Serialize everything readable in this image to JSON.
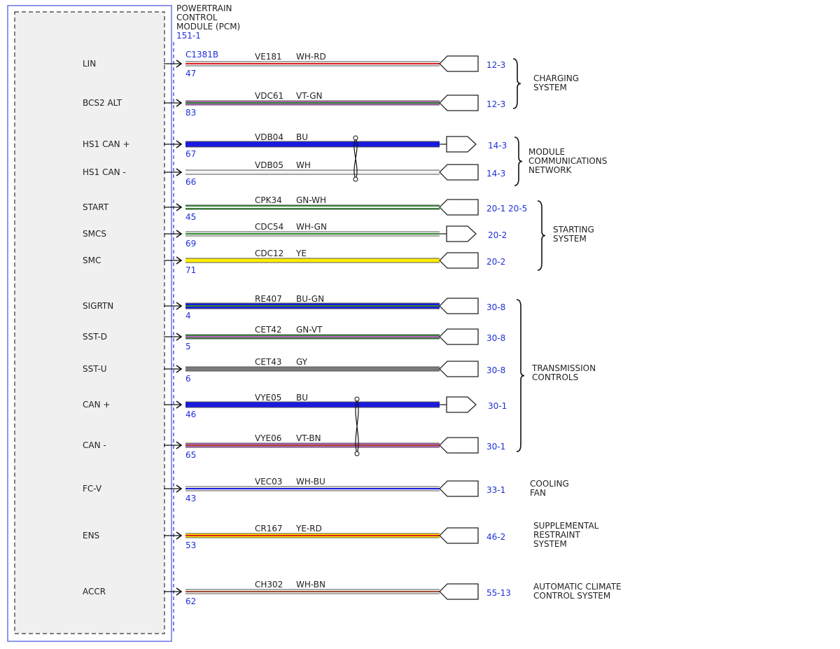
{
  "module": {
    "title_lines": [
      "POWERTRAIN",
      "CONTROL",
      "MODULE (PCM)"
    ],
    "ref": "151-1",
    "connector": "C1381B"
  },
  "colors": {
    "blue_text": "#1f2fd8",
    "outline": "#6a74e6",
    "module_fill": "#f0f0f0",
    "WH": "#f4f4f4",
    "RD": "#e02020",
    "VT": "#c060c8",
    "GN": "#2e8b2e",
    "BU": "#1a1ae0",
    "YE": "#ffee00",
    "GY": "#7a7a7a",
    "BN": "#a05030"
  },
  "circuits": [
    {
      "signal": "LIN",
      "pin": "47",
      "circuit": "VE181",
      "color": "WH-RD",
      "ref": "12-3",
      "arrow": "in"
    },
    {
      "signal": "BCS2 ALT",
      "pin": "83",
      "circuit": "VDC61",
      "color": "VT-GN",
      "ref": "12-3",
      "arrow": "in"
    },
    {
      "signal": "HS1 CAN +",
      "pin": "67",
      "circuit": "VDB04",
      "color": "BU",
      "ref": "14-3",
      "arrow": "out"
    },
    {
      "signal": "HS1 CAN -",
      "pin": "66",
      "circuit": "VDB05",
      "color": "WH",
      "ref": "14-3",
      "arrow": "in"
    },
    {
      "signal": "START",
      "pin": "45",
      "circuit": "CPK34",
      "color": "GN-WH",
      "ref": "20-1  20-5",
      "arrow": "in"
    },
    {
      "signal": "SMCS",
      "pin": "69",
      "circuit": "CDC54",
      "color": "WH-GN",
      "ref": "20-2",
      "arrow": "out"
    },
    {
      "signal": "SMC",
      "pin": "71",
      "circuit": "CDC12",
      "color": "YE",
      "ref": "20-2",
      "arrow": "in"
    },
    {
      "signal": "SIGRTN",
      "pin": "4",
      "circuit": "RE407",
      "color": "BU-GN",
      "ref": "30-8",
      "arrow": "in"
    },
    {
      "signal": "SST-D",
      "pin": "5",
      "circuit": "CET42",
      "color": "GN-VT",
      "ref": "30-8",
      "arrow": "in"
    },
    {
      "signal": "SST-U",
      "pin": "6",
      "circuit": "CET43",
      "color": "GY",
      "ref": "30-8",
      "arrow": "in"
    },
    {
      "signal": "CAN +",
      "pin": "46",
      "circuit": "VYE05",
      "color": "BU",
      "ref": "30-1",
      "arrow": "out"
    },
    {
      "signal": "CAN -",
      "pin": "65",
      "circuit": "VYE06",
      "color": "VT-BN",
      "ref": "30-1",
      "arrow": "in"
    },
    {
      "signal": "FC-V",
      "pin": "43",
      "circuit": "VEC03",
      "color": "WH-BU",
      "ref": "33-1",
      "arrow": "in"
    },
    {
      "signal": "ENS",
      "pin": "53",
      "circuit": "CR167",
      "color": "YE-RD",
      "ref": "46-2",
      "arrow": "in"
    },
    {
      "signal": "ACCR",
      "pin": "62",
      "circuit": "CH302",
      "color": "WH-BN",
      "ref": "55-13",
      "arrow": "in"
    }
  ],
  "groups": [
    {
      "name_lines": [
        "CHARGING",
        "SYSTEM"
      ]
    },
    {
      "name_lines": [
        "MODULE",
        "COMMUNICATIONS",
        "NETWORK"
      ]
    },
    {
      "name_lines": [
        "STARTING",
        "SYSTEM"
      ]
    },
    {
      "name_lines": [
        "TRANSMISSION",
        "CONTROLS"
      ]
    },
    {
      "name_lines": [
        "COOLING",
        "FAN"
      ]
    },
    {
      "name_lines": [
        "SUPPLEMENTAL",
        "RESTRAINT",
        "SYSTEM"
      ]
    },
    {
      "name_lines": [
        "AUTOMATIC CLIMATE",
        "CONTROL SYSTEM"
      ]
    }
  ]
}
